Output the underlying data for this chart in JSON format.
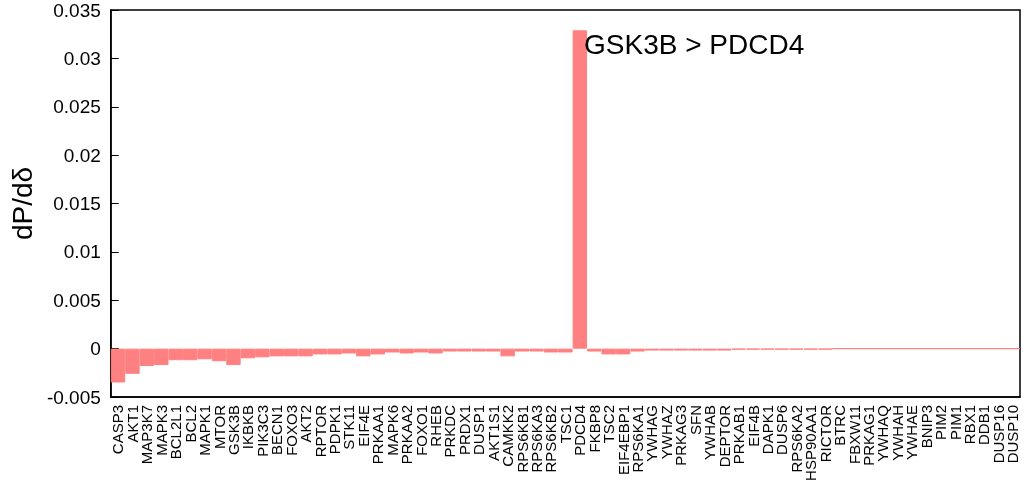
{
  "chart_data": {
    "type": "bar",
    "ylabel": "dP/dδ",
    "categories": [
      "CASP3",
      "AKT1",
      "MAP3K7",
      "MAPK3",
      "BCL2L1",
      "BCL2",
      "MAPK1",
      "MTOR",
      "GSK3B",
      "IKBKB",
      "PIK3C3",
      "BECN1",
      "FOXO3",
      "AKT2",
      "RPTOR",
      "PDPK1",
      "STK11",
      "EIF4E",
      "PRKAA1",
      "MAPK6",
      "PRKAA2",
      "FOXO1",
      "RHEB",
      "PRKDC",
      "PRDX1",
      "DUSP1",
      "AKT1S1",
      "CAMKK2",
      "RPS6KB1",
      "RPS6KA3",
      "RPS6KB2",
      "TSC1",
      "PDCD4",
      "FKBP8",
      "TSC2",
      "EIF4EBP1",
      "RPS6KA1",
      "YWHAG",
      "YWHAZ",
      "PRKAG3",
      "SFN",
      "YWHAB",
      "DEPTOR",
      "PRKAB1",
      "EIF4B",
      "DAPK1",
      "DUSP6",
      "RPS6KA2",
      "HSP90AA1",
      "RICTOR",
      "BTRC",
      "FBXW11",
      "PRKAG1",
      "YWHAQ",
      "YWHAH",
      "YWHAE",
      "BNIP3",
      "PIM2",
      "PIM1",
      "RBX1",
      "DDB1",
      "DUSP16",
      "DUSP10"
    ],
    "values": [
      -0.0035,
      -0.0026,
      -0.0018,
      -0.0017,
      -0.0012,
      -0.0012,
      -0.0011,
      -0.0013,
      -0.0017,
      -0.001,
      -0.0009,
      -0.0008,
      -0.0008,
      -0.0008,
      -0.0006,
      -0.0006,
      -0.0005,
      -0.0008,
      -0.0006,
      -0.0004,
      -0.0005,
      -0.0004,
      -0.0005,
      -0.0003,
      -0.0003,
      -0.0003,
      -0.0003,
      -0.0008,
      -0.0003,
      -0.0003,
      -0.0004,
      -0.0004,
      0.0329,
      -0.0003,
      -0.0006,
      -0.0006,
      -0.0003,
      -0.0002,
      -0.0002,
      -0.0002,
      -0.0002,
      -0.0002,
      -0.0002,
      -0.0001,
      -0.0001,
      -0.0001,
      -0.0001,
      -0.0001,
      -0.0001,
      -0.0001,
      0,
      0,
      0,
      0,
      0,
      0,
      0,
      0,
      0,
      0,
      0,
      0,
      0
    ],
    "color": "#ff8080",
    "ylim": [
      -0.005,
      0.035
    ],
    "yticks": [
      -0.005,
      0,
      0.005,
      0.01,
      0.015,
      0.02,
      0.025,
      0.03,
      0.035
    ],
    "annotations": [
      "GSK3B > PDCD4"
    ]
  }
}
